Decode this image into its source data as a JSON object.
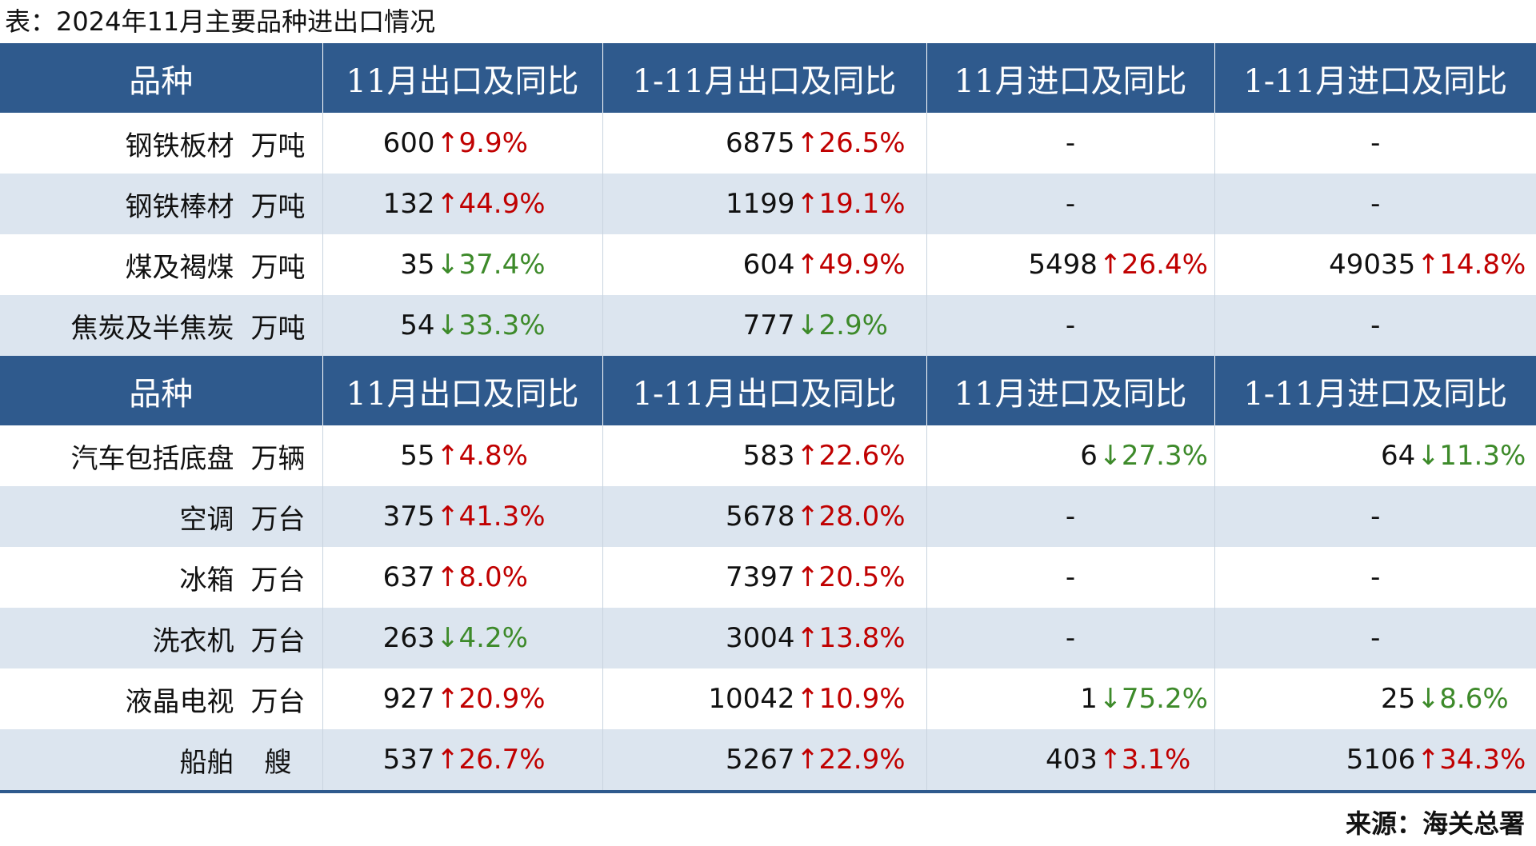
{
  "title": "表：2024年11月主要品种进出口情况",
  "source": "来源：海关总署",
  "colors": {
    "header_bg": "#2f5a8d",
    "stripe": "#dce5ef",
    "up": "#c00000",
    "down": "#3d8a2a"
  },
  "icons": {
    "up": "up-arrow-icon",
    "down": "down-arrow-icon"
  },
  "sections": [
    {
      "header": [
        "品种",
        "11月出口及同比",
        "1-11月出口及同比",
        "11月进口及同比",
        "1-11月进口及同比"
      ],
      "rows": [
        {
          "name": "钢铁板材",
          "unit": "万吨",
          "cells": [
            {
              "value": "600",
              "dir": "up",
              "arrow": "↑",
              "pct": "9.9%"
            },
            {
              "value": "6875",
              "dir": "up",
              "arrow": "↑",
              "pct": "26.5%"
            },
            {
              "dash": "-"
            },
            {
              "dash": "-"
            }
          ]
        },
        {
          "name": "钢铁棒材",
          "unit": "万吨",
          "cells": [
            {
              "value": "132",
              "dir": "up",
              "arrow": "↑",
              "pct": "44.9%"
            },
            {
              "value": "1199",
              "dir": "up",
              "arrow": "↑",
              "pct": "19.1%"
            },
            {
              "dash": "-"
            },
            {
              "dash": "-"
            }
          ]
        },
        {
          "name": "煤及褐煤",
          "unit": "万吨",
          "cells": [
            {
              "value": "35",
              "dir": "down",
              "arrow": "↓",
              "pct": "37.4%"
            },
            {
              "value": "604",
              "dir": "up",
              "arrow": "↑",
              "pct": "49.9%"
            },
            {
              "value": "5498",
              "dir": "up",
              "arrow": "↑",
              "pct": "26.4%"
            },
            {
              "value": "49035",
              "dir": "up",
              "arrow": "↑",
              "pct": "14.8%"
            }
          ]
        },
        {
          "name": "焦炭及半焦炭",
          "unit": "万吨",
          "cells": [
            {
              "value": "54",
              "dir": "down",
              "arrow": "↓",
              "pct": "33.3%"
            },
            {
              "value": "777",
              "dir": "down",
              "arrow": "↓",
              "pct": "2.9%"
            },
            {
              "dash": "-"
            },
            {
              "dash": "-"
            }
          ]
        }
      ]
    },
    {
      "header": [
        "品种",
        "11月出口及同比",
        "1-11月出口及同比",
        "11月进口及同比",
        "1-11月进口及同比"
      ],
      "rows": [
        {
          "name": "汽车包括底盘",
          "unit": "万辆",
          "cells": [
            {
              "value": "55",
              "dir": "up",
              "arrow": "↑",
              "pct": "4.8%"
            },
            {
              "value": "583",
              "dir": "up",
              "arrow": "↑",
              "pct": "22.6%"
            },
            {
              "value": "6",
              "dir": "down",
              "arrow": "↓",
              "pct": "27.3%"
            },
            {
              "value": "64",
              "dir": "down",
              "arrow": "↓",
              "pct": "11.3%"
            }
          ]
        },
        {
          "name": "空调",
          "unit": "万台",
          "cells": [
            {
              "value": "375",
              "dir": "up",
              "arrow": "↑",
              "pct": "41.3%"
            },
            {
              "value": "5678",
              "dir": "up",
              "arrow": "↑",
              "pct": "28.0%"
            },
            {
              "dash": "-"
            },
            {
              "dash": "-"
            }
          ]
        },
        {
          "name": "冰箱",
          "unit": "万台",
          "cells": [
            {
              "value": "637",
              "dir": "up",
              "arrow": "↑",
              "pct": "8.0%"
            },
            {
              "value": "7397",
              "dir": "up",
              "arrow": "↑",
              "pct": "20.5%"
            },
            {
              "dash": "-"
            },
            {
              "dash": "-"
            }
          ]
        },
        {
          "name": "洗衣机",
          "unit": "万台",
          "cells": [
            {
              "value": "263",
              "dir": "down",
              "arrow": "↓",
              "pct": "4.2%"
            },
            {
              "value": "3004",
              "dir": "up",
              "arrow": "↑",
              "pct": "13.8%"
            },
            {
              "dash": "-"
            },
            {
              "dash": "-"
            }
          ]
        },
        {
          "name": "液晶电视",
          "unit": "万台",
          "cells": [
            {
              "value": "927",
              "dir": "up",
              "arrow": "↑",
              "pct": "20.9%"
            },
            {
              "value": "10042",
              "dir": "up",
              "arrow": "↑",
              "pct": "10.9%"
            },
            {
              "value": "1",
              "dir": "down",
              "arrow": "↓",
              "pct": "75.2%"
            },
            {
              "value": "25",
              "dir": "down",
              "arrow": "↓",
              "pct": "8.6%"
            }
          ]
        },
        {
          "name": "船舶",
          "unit": "艘",
          "cells": [
            {
              "value": "537",
              "dir": "up",
              "arrow": "↑",
              "pct": "26.7%"
            },
            {
              "value": "5267",
              "dir": "up",
              "arrow": "↑",
              "pct": "22.9%"
            },
            {
              "value": "403",
              "dir": "up",
              "arrow": "↑",
              "pct": "3.1%"
            },
            {
              "value": "5106",
              "dir": "up",
              "arrow": "↑",
              "pct": "34.3%"
            }
          ]
        }
      ]
    }
  ]
}
